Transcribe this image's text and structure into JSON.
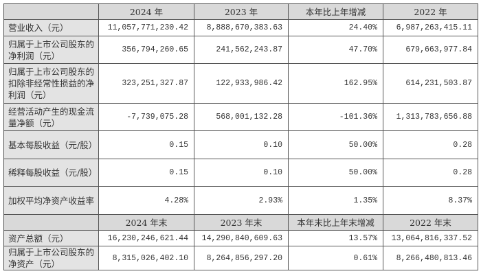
{
  "header1": [
    "",
    "2024 年",
    "2023 年",
    "本年比上年增减",
    "2022 年"
  ],
  "rows1": [
    {
      "label": "营业收入（元）",
      "values": [
        "11,057,771,230.42",
        "8,888,670,383.63",
        "24.40%",
        "6,987,263,415.11"
      ]
    },
    {
      "label": "归属于上市公司股东的净利润（元）",
      "values": [
        "356,794,260.65",
        "241,562,243.87",
        "47.70%",
        "679,663,977.84"
      ]
    },
    {
      "label": "归属于上市公司股东的扣除非经常性损益的净利润（元）",
      "values": [
        "323,251,327.87",
        "122,933,986.42",
        "162.95%",
        "614,231,503.87"
      ]
    },
    {
      "label": "经营活动产生的现金流量净额（元）",
      "values": [
        "-7,739,075.28",
        "568,001,132.28",
        "-101.36%",
        "1,313,783,656.88"
      ]
    },
    {
      "label": "基本每股收益（元/股）",
      "values": [
        "0.15",
        "0.10",
        "50.00%",
        "0.28"
      ]
    },
    {
      "label": "稀释每股收益（元/股）",
      "values": [
        "0.15",
        "0.10",
        "50.00%",
        "0.28"
      ]
    },
    {
      "label": "加权平均净资产收益率",
      "values": [
        "4.28%",
        "2.93%",
        "1.35%",
        "8.37%"
      ]
    }
  ],
  "header2": [
    "",
    "2024 年末",
    "2023 年末",
    "本年末比上年末增减",
    "2022 年末"
  ],
  "rows2": [
    {
      "label": "资产总额（元）",
      "values": [
        "16,230,246,621.44",
        "14,290,840,609.63",
        "13.57%",
        "13,064,816,337.52"
      ]
    },
    {
      "label": "归属于上市公司股东的净资产（元）",
      "values": [
        "8,315,026,402.10",
        "8,264,856,297.20",
        "0.61%",
        "8,266,480,813.46"
      ]
    }
  ]
}
